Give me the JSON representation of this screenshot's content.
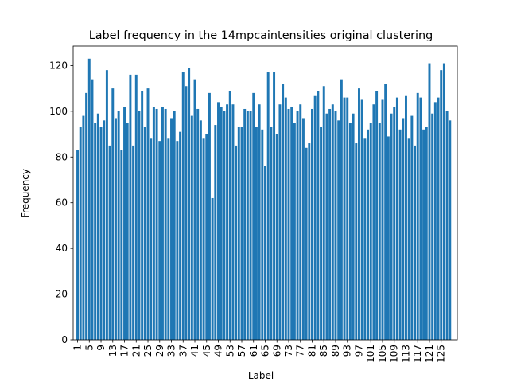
{
  "chart_data": {
    "type": "bar",
    "title": "Label frequency in the 14mpcaintensities original clustering",
    "xlabel": "Label",
    "ylabel": "Frequency",
    "xlim": [
      -1.5,
      129.5
    ],
    "ylim": [
      0,
      128.5
    ],
    "grid": false,
    "bar_color": "#1f77b4",
    "x_tick_labels": [
      "1",
      "5",
      "9",
      "13",
      "17",
      "21",
      "25",
      "29",
      "33",
      "37",
      "41",
      "45",
      "49",
      "53",
      "57",
      "61",
      "65",
      "69",
      "73",
      "77",
      "81",
      "85",
      "89",
      "93",
      "97",
      "101",
      "105",
      "109",
      "113",
      "117",
      "121",
      "125"
    ],
    "y_ticks": [
      0,
      20,
      40,
      60,
      80,
      100,
      120
    ],
    "categories": [
      1,
      2,
      3,
      4,
      5,
      6,
      7,
      8,
      9,
      10,
      11,
      12,
      13,
      14,
      15,
      16,
      17,
      18,
      19,
      20,
      21,
      22,
      23,
      24,
      25,
      26,
      27,
      28,
      29,
      30,
      31,
      32,
      33,
      34,
      35,
      36,
      37,
      38,
      39,
      40,
      41,
      42,
      43,
      44,
      45,
      46,
      47,
      48,
      49,
      50,
      51,
      52,
      53,
      54,
      55,
      56,
      57,
      58,
      59,
      60,
      61,
      62,
      63,
      64,
      65,
      66,
      67,
      68,
      69,
      70,
      71,
      72,
      73,
      74,
      75,
      76,
      77,
      78,
      79,
      80,
      81,
      82,
      83,
      84,
      85,
      86,
      87,
      88,
      89,
      90,
      91,
      92,
      93,
      94,
      95,
      96,
      97,
      98,
      99,
      100,
      101,
      102,
      103,
      104,
      105,
      106,
      107,
      108,
      109,
      110,
      111,
      112,
      113,
      114,
      115,
      116,
      117,
      117,
      118,
      119,
      120,
      121,
      122,
      123,
      124,
      125,
      126,
      127
    ],
    "values": [
      83,
      93,
      98,
      108,
      123,
      114,
      95,
      99,
      93,
      96,
      118,
      85,
      110,
      97,
      100,
      83,
      102,
      95,
      116,
      85,
      116,
      100,
      109,
      93,
      110,
      88,
      102,
      101,
      87,
      102,
      101,
      88,
      97,
      100,
      87,
      91,
      117,
      111,
      119,
      98,
      114,
      101,
      96,
      88,
      90,
      108,
      62,
      94,
      104,
      102,
      100,
      103,
      109,
      103,
      85,
      93,
      93,
      101,
      100,
      100,
      108,
      93,
      103,
      92,
      76,
      117,
      93,
      117,
      90,
      103,
      112,
      106,
      101,
      102,
      95,
      100,
      103,
      97,
      84,
      86,
      101,
      107,
      109,
      93,
      111,
      99,
      101,
      103,
      100,
      96,
      114,
      106,
      106,
      95,
      99,
      86,
      110,
      105,
      88,
      92,
      95,
      103,
      109,
      95,
      105,
      112,
      89,
      99,
      102,
      106,
      92,
      97,
      107,
      88,
      98,
      85,
      108,
      106,
      92,
      93,
      121,
      99,
      104,
      106,
      118,
      121,
      100,
      96
    ]
  }
}
